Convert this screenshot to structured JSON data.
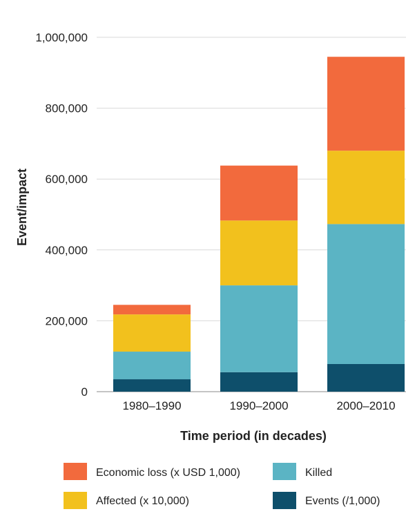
{
  "chart_data": {
    "type": "bar",
    "stacked": true,
    "categories": [
      "1980–1990",
      "1990–2000",
      "2000–2010"
    ],
    "series": [
      {
        "name": "Events (/1,000)",
        "color": "#0e4f6b",
        "values": [
          35000,
          55000,
          78000
        ]
      },
      {
        "name": "Killed",
        "color": "#5bb4c4",
        "values": [
          78000,
          245000,
          395000
        ]
      },
      {
        "name": "Affected (x 10,000)",
        "color": "#f2c11d",
        "values": [
          105000,
          183000,
          207000
        ]
      },
      {
        "name": "Economic loss (x USD 1,000)",
        "color": "#f26a3d",
        "values": [
          27000,
          155000,
          265000
        ]
      }
    ],
    "title": "",
    "xlabel": "Time period (in decades)",
    "ylabel": "Event/impact",
    "ylim": [
      0,
      1000000
    ],
    "yticks": [
      0,
      200000,
      400000,
      600000,
      800000,
      1000000
    ],
    "ytick_labels": [
      "0",
      "200,000",
      "400,000",
      "600,000",
      "800,000",
      "1,000,000"
    ],
    "grid": true,
    "legend_position": "bottom"
  },
  "legend": {
    "items": [
      {
        "label": "Economic loss (x USD 1,000)",
        "color": "#f26a3d"
      },
      {
        "label": "Killed",
        "color": "#5bb4c4"
      },
      {
        "label": "Affected (x 10,000)",
        "color": "#f2c11d"
      },
      {
        "label": "Events (/1,000)",
        "color": "#0e4f6b"
      }
    ]
  }
}
